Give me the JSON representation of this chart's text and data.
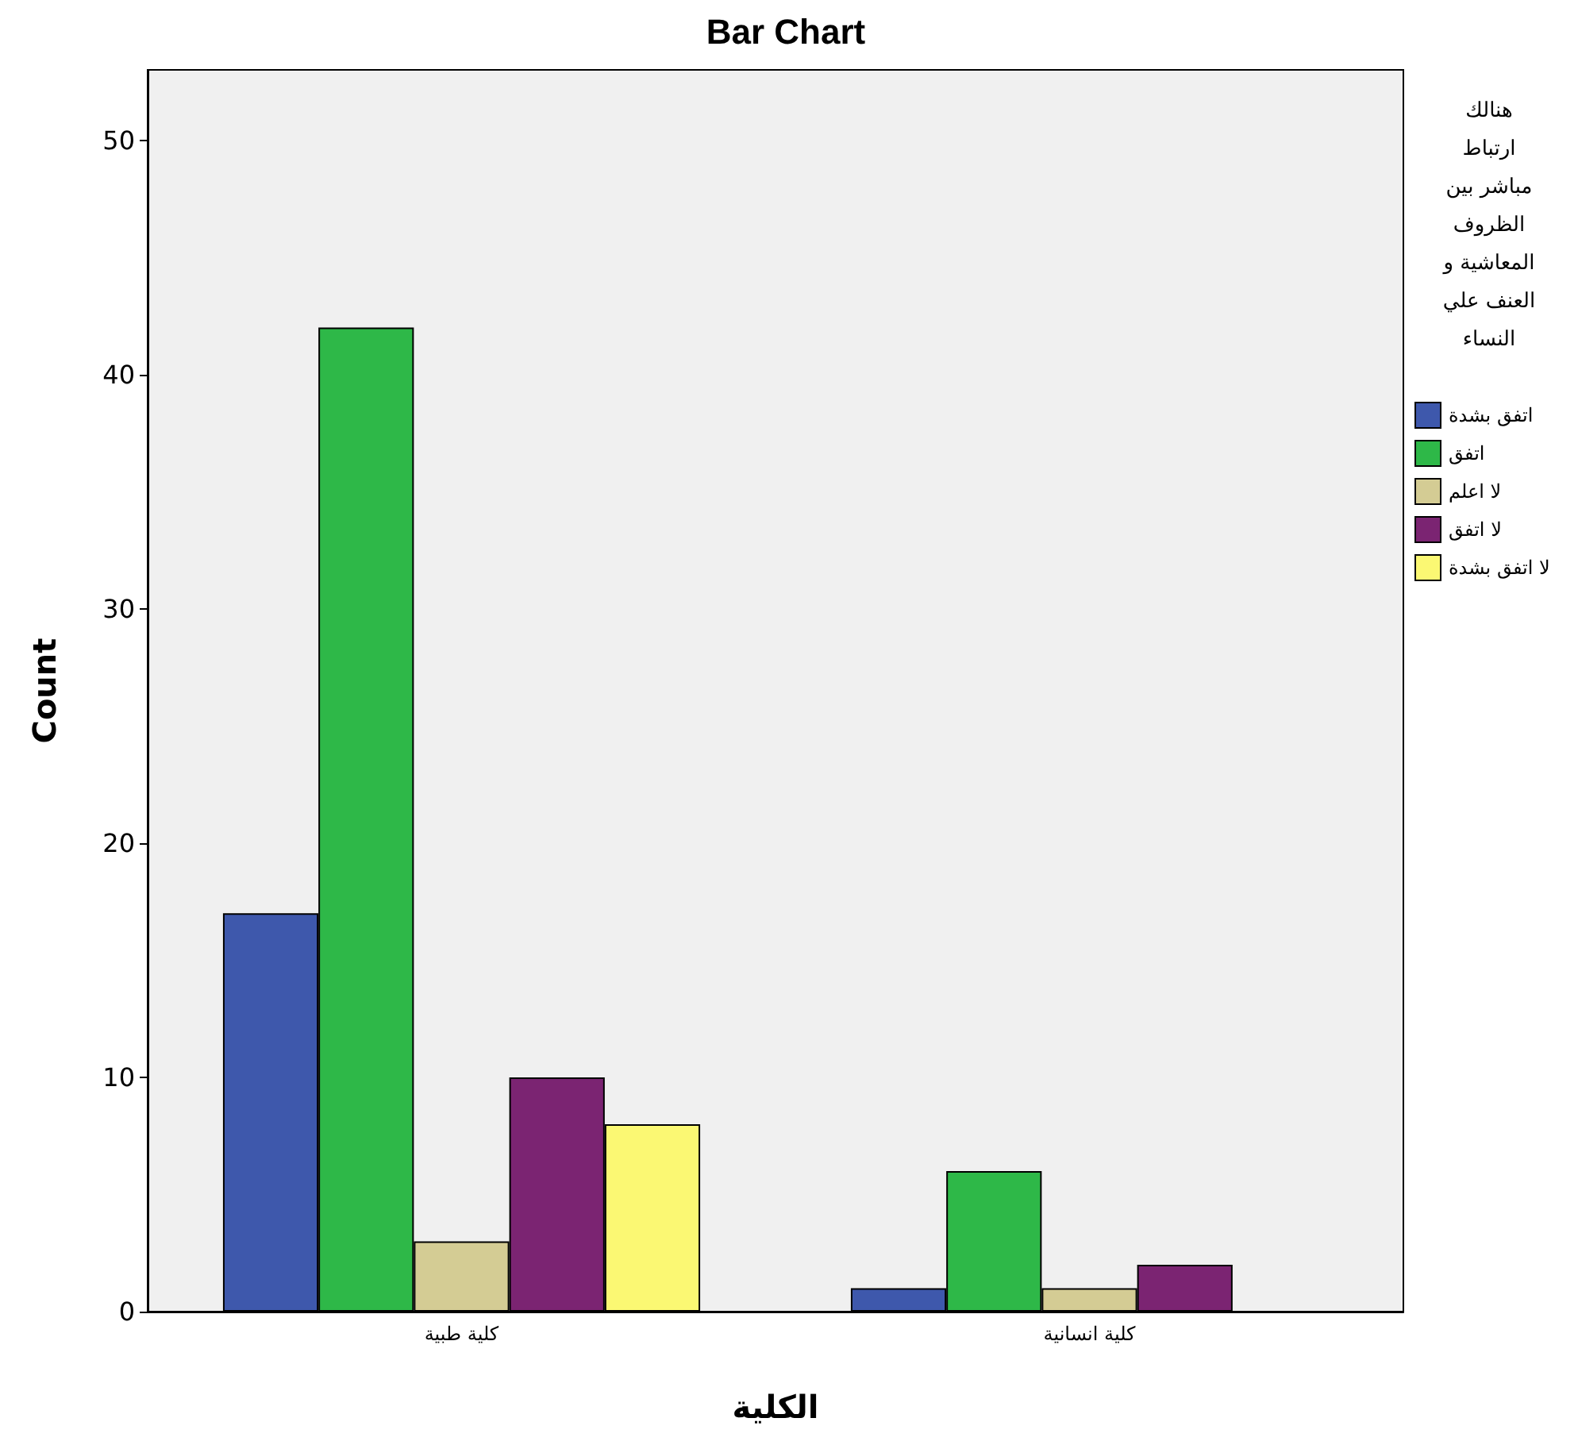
{
  "chart_data": {
    "type": "bar",
    "title": "Bar Chart",
    "xlabel": "الكلية",
    "ylabel": "Count",
    "legend_title": "هنالك ارتباط مباشر بين الظروف المعاشية و العنف علي النساء",
    "categories": [
      "كلية طبية",
      "كلية انسانية"
    ],
    "series": [
      {
        "name": "اتفق بشدة",
        "color": "#3e58ac",
        "values": [
          17,
          1
        ]
      },
      {
        "name": "اتفق",
        "color": "#2eb848",
        "values": [
          42,
          6
        ]
      },
      {
        "name": "لا اعلم",
        "color": "#d4cc94",
        "values": [
          3,
          1
        ]
      },
      {
        "name": "لا اتفق",
        "color": "#7b2472",
        "values": [
          10,
          2
        ]
      },
      {
        "name": "لا اتفق بشدة",
        "color": "#fbf873",
        "values": [
          8,
          0
        ]
      }
    ],
    "ylim": [
      0,
      53
    ],
    "yticks": [
      0,
      10,
      20,
      30,
      40,
      50
    ],
    "grid": false,
    "legend": "right"
  }
}
